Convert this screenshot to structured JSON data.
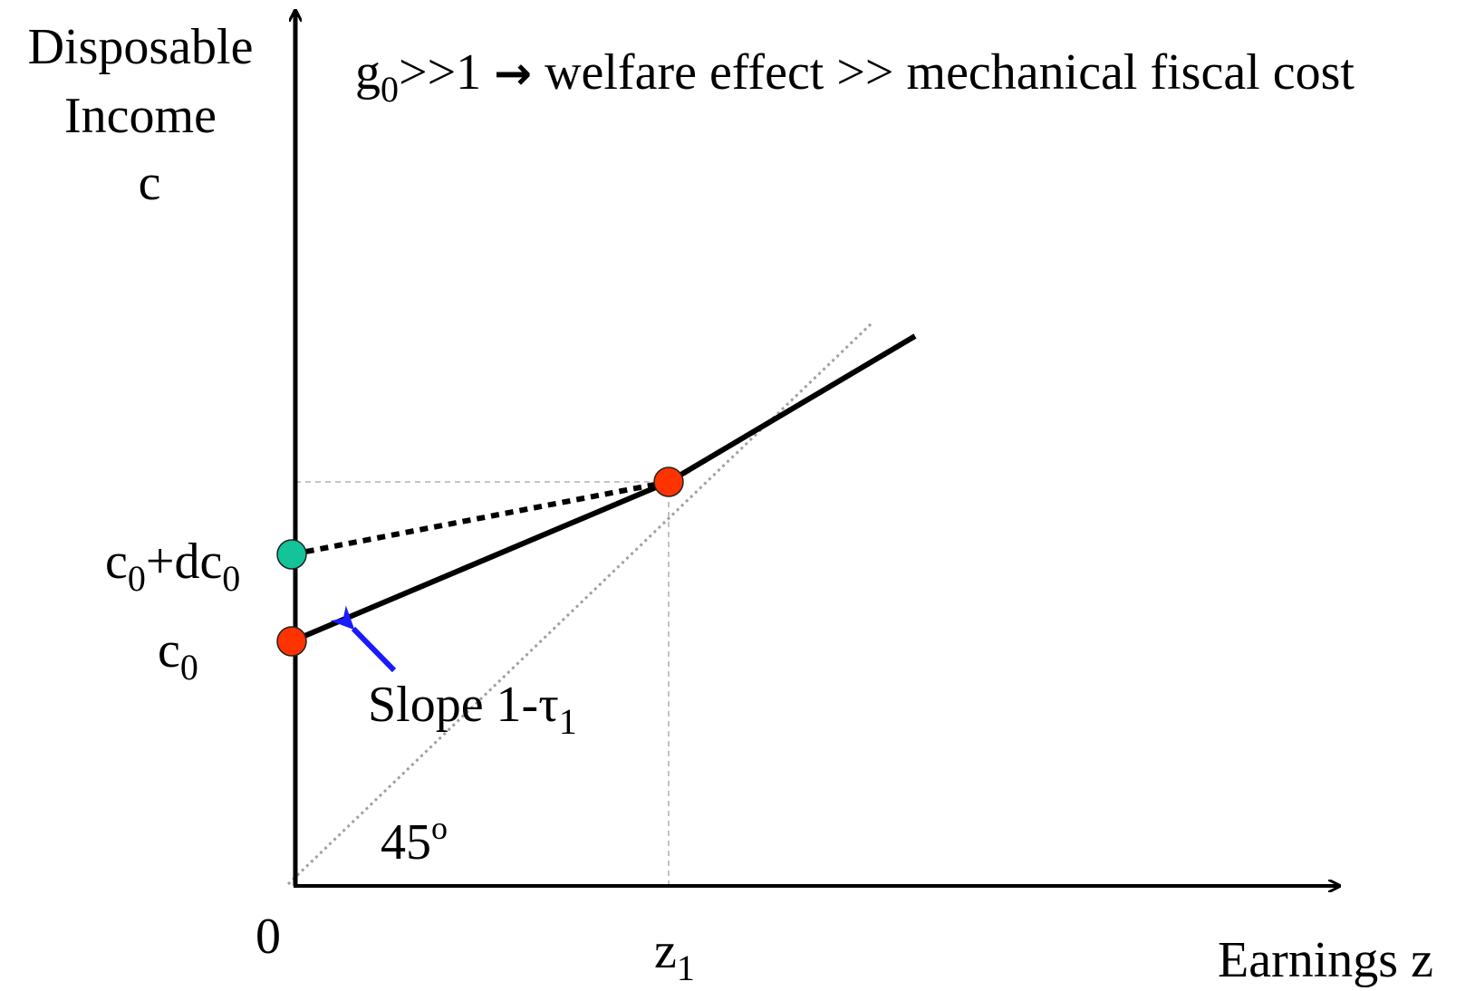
{
  "axes": {
    "y_label_line1": "Disposable",
    "y_label_line2": "Income",
    "y_label_line3": "c",
    "x_label": "Earnings z",
    "origin": "0"
  },
  "headline": {
    "g": "g",
    "g_sub": "0",
    "condition": ">>1",
    "arrow": "→",
    "text": "welfare effect >> mechanical fiscal cost"
  },
  "labels": {
    "c0_main": "c",
    "c0_sub": "0",
    "c0dc0_c": "c",
    "c0dc0_sub1": "0",
    "c0dc0_mid": "+dc",
    "c0dc0_sub2": "0",
    "z1_main": "z",
    "z1_sub": "1",
    "slope_main": "Slope 1-τ",
    "slope_sub": "1",
    "angle_main": "45",
    "angle_sup": "o"
  },
  "colors": {
    "point_red": "#ff3300",
    "point_green": "#13c39a",
    "arrow_blue": "#1a1aff",
    "dotted_gray": "#a0a0a0"
  }
}
